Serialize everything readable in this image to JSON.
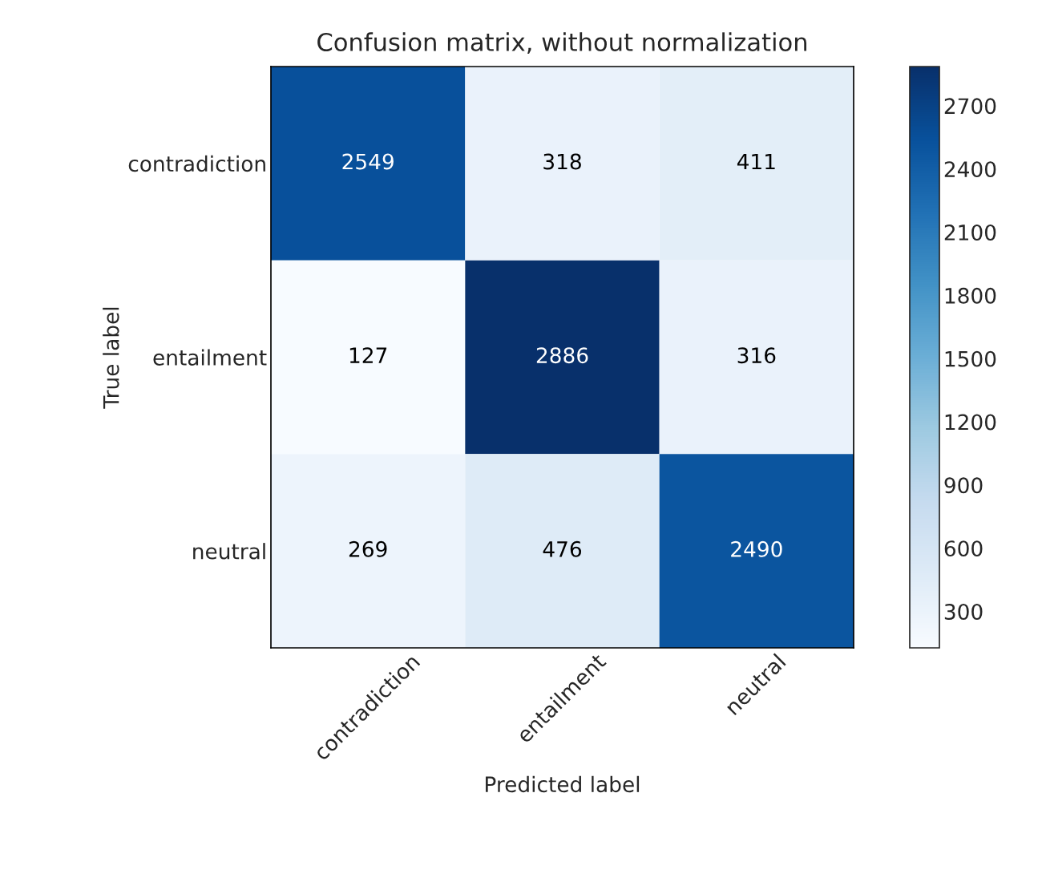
{
  "chart_data": {
    "type": "heatmap",
    "title": "Confusion matrix, without normalization",
    "xlabel": "Predicted label",
    "ylabel": "True label",
    "categories": [
      "contradiction",
      "entailment",
      "neutral"
    ],
    "y_categories": [
      "contradiction",
      "entailment",
      "neutral"
    ],
    "cells": [
      [
        2549,
        318,
        411
      ],
      [
        127,
        2886,
        316
      ],
      [
        269,
        476,
        2490
      ]
    ],
    "clim": [
      127,
      2886
    ],
    "cticks": [
      300,
      600,
      900,
      1200,
      1500,
      1800,
      2100,
      2400,
      2700
    ],
    "data_labels": true
  }
}
